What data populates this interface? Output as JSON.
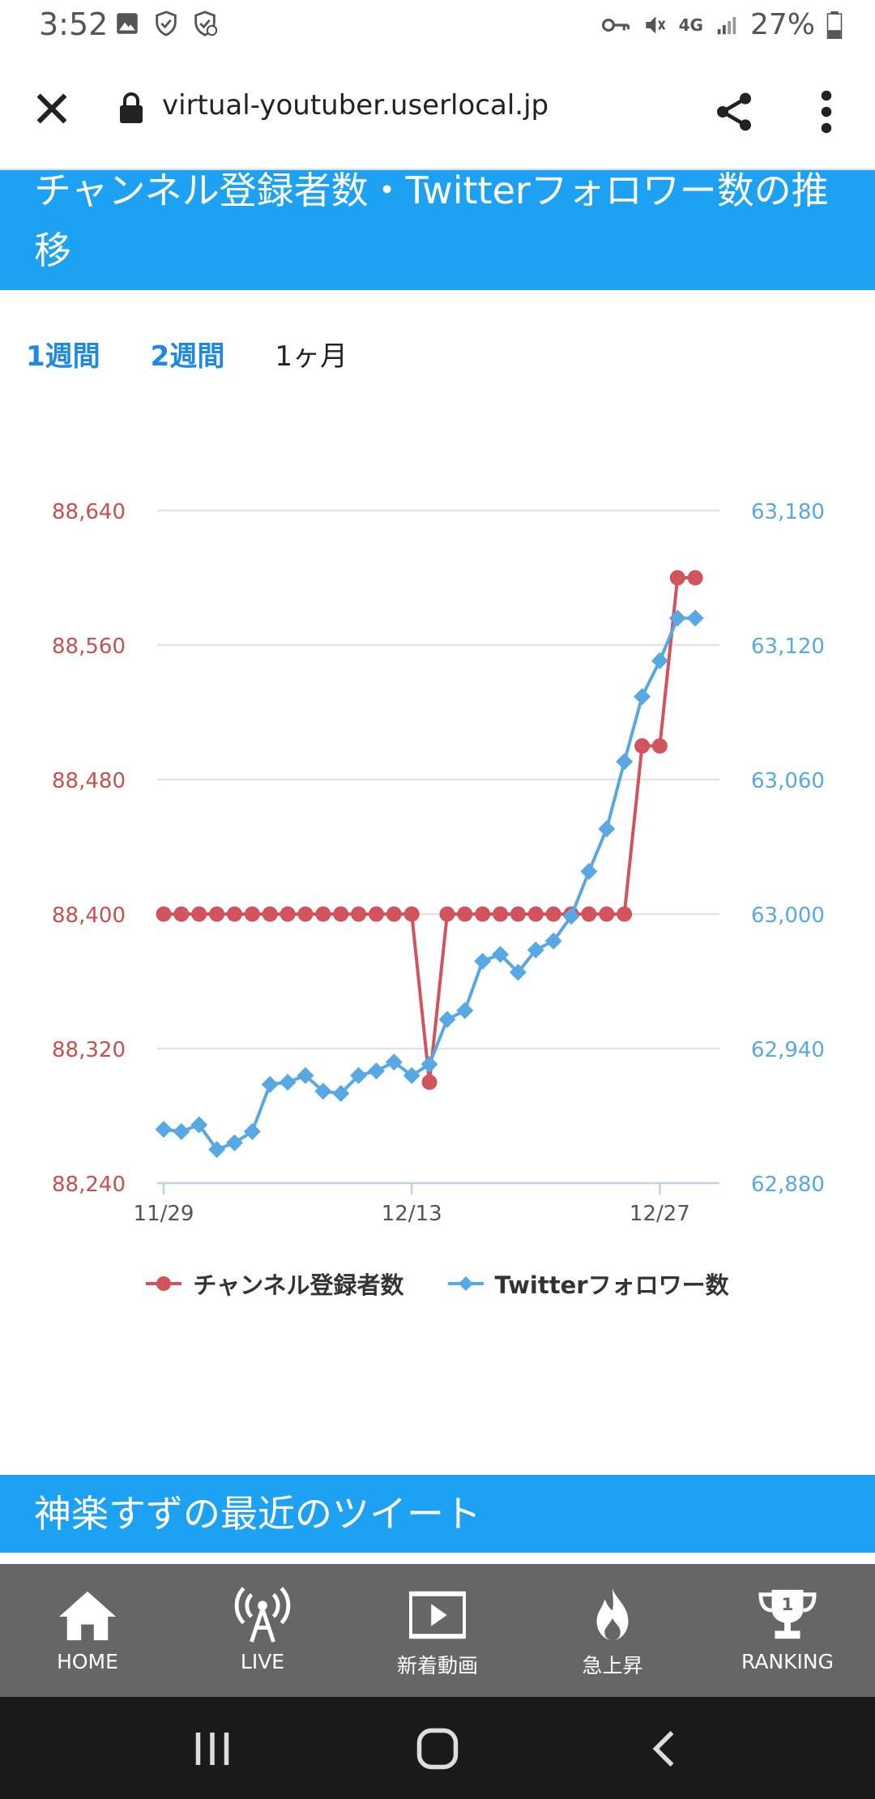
{
  "status_bar": {
    "time": "3:52",
    "battery": "27%",
    "network": "4G",
    "icons_left": [
      "image-icon",
      "shield-check-icon",
      "shield-sync-icon"
    ],
    "icons_right": [
      "vpn-key-icon",
      "mute-icon",
      "network-4g-icon",
      "signal-icon",
      "battery-icon"
    ]
  },
  "browser": {
    "url": "virtual-youtuber.userlocal.jp",
    "icons": [
      "close-icon",
      "lock-icon",
      "share-icon",
      "more-vert-icon"
    ]
  },
  "section_title": "チャンネル登録者数・Twitterフォロワー数の推移",
  "range_tabs": [
    {
      "label": "1週間",
      "active": false
    },
    {
      "label": "2週間",
      "active": false
    },
    {
      "label": "1ヶ月",
      "active": true
    }
  ],
  "chart_data": {
    "type": "line",
    "x": [
      "11/29",
      "11/30",
      "12/01",
      "12/02",
      "12/03",
      "12/04",
      "12/05",
      "12/06",
      "12/07",
      "12/08",
      "12/09",
      "12/10",
      "12/11",
      "12/12",
      "12/13",
      "12/14",
      "12/15",
      "12/16",
      "12/17",
      "12/18",
      "12/19",
      "12/20",
      "12/21",
      "12/22",
      "12/23",
      "12/24",
      "12/25",
      "12/26",
      "12/27",
      "12/28",
      "12/29",
      "12/30"
    ],
    "x_ticks": [
      "11/29",
      "12/13",
      "12/27"
    ],
    "series": [
      {
        "name": "チャンネル登録者数",
        "axis": "left",
        "color": "#d1545c",
        "marker": "circle",
        "values": [
          88400,
          88400,
          88400,
          88400,
          88400,
          88400,
          88400,
          88400,
          88400,
          88400,
          88400,
          88400,
          88400,
          88400,
          88400,
          88300,
          88400,
          88400,
          88400,
          88400,
          88400,
          88400,
          88400,
          88400,
          88400,
          88400,
          88400,
          88500,
          88500,
          88600,
          88600,
          null
        ]
      },
      {
        "name": "Twitterフォロワー数",
        "axis": "right",
        "color": "#58a8e4",
        "marker": "diamond",
        "values": [
          62904,
          62903,
          62906,
          62895,
          62898,
          62903,
          62924,
          62925,
          62928,
          62921,
          62920,
          62928,
          62930,
          62934,
          62928,
          62933,
          62953,
          62957,
          62979,
          62982,
          62974,
          62984,
          62988,
          62999,
          63019,
          63038,
          63068,
          63097,
          63113,
          63132,
          63132,
          null
        ]
      }
    ],
    "y_left": {
      "ticks": [
        "88,240",
        "88,320",
        "88,400",
        "88,480",
        "88,560",
        "88,640"
      ],
      "min": 88240,
      "max": 88640,
      "color": "#c8504e"
    },
    "y_right": {
      "ticks": [
        "62,880",
        "62,940",
        "63,000",
        "63,060",
        "63,120",
        "63,180"
      ],
      "min": 62880,
      "max": 63180,
      "color": "#58a8e4"
    },
    "grid": true,
    "legend_position": "bottom"
  },
  "legend": {
    "series1": "チャンネル登録者数",
    "series2": "Twitterフォロワー数"
  },
  "tweets_title": "神楽すずの最近のツイート",
  "bottom_nav": [
    {
      "label": "HOME",
      "icon": "home-icon"
    },
    {
      "label": "LIVE",
      "icon": "broadcast-tower-icon"
    },
    {
      "label": "新着動画",
      "icon": "video-icon"
    },
    {
      "label": "急上昇",
      "icon": "flame-icon"
    },
    {
      "label": "RANKING",
      "icon": "trophy-icon"
    }
  ],
  "system_nav": [
    "recent-apps-icon",
    "home-button-icon",
    "back-icon"
  ]
}
